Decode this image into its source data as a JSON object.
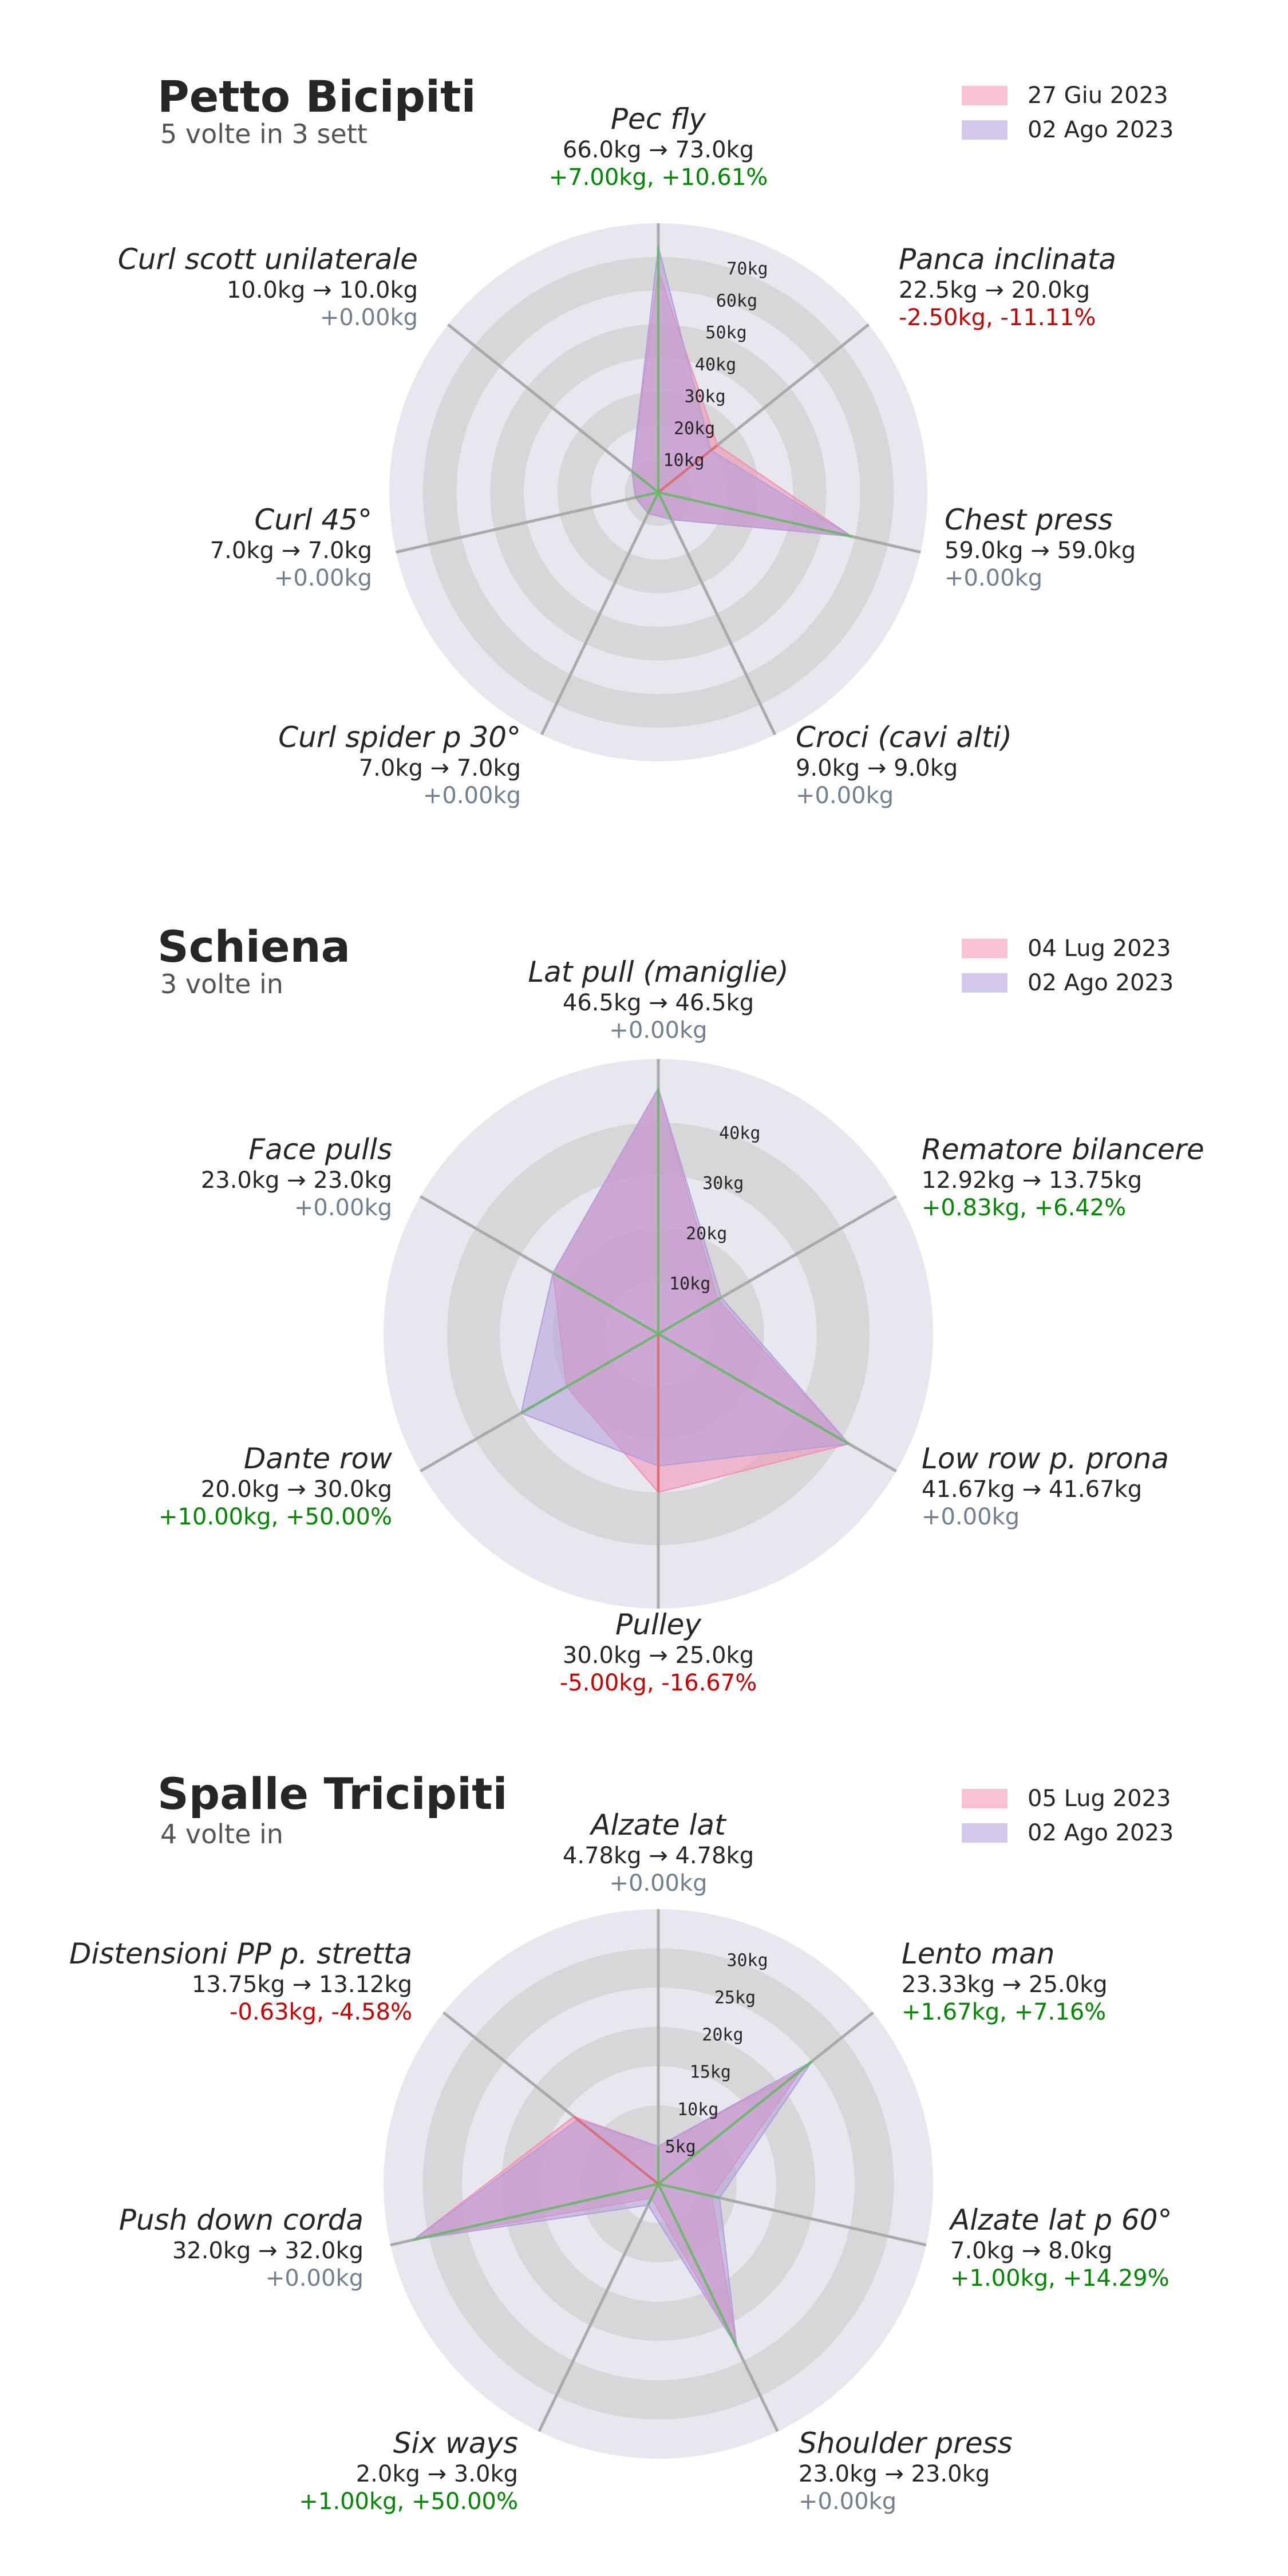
{
  "colors": {
    "before": "#f48fb1",
    "after": "#b39ddb",
    "positive": "#008800",
    "negative": "#cc0000",
    "neutral": "#708090",
    "ring_dark": "#d7d7da",
    "ring_light": "#e7e7ef",
    "spoke": "#aaaaaa"
  },
  "chart_data": [
    {
      "type": "radar",
      "title": "Petto Bicipiti",
      "subtitle": "5 volte in 3 sett",
      "legend": [
        "27 Giu 2023",
        "02 Ago 2023"
      ],
      "rmax": 80,
      "ticks": [
        10,
        20,
        30,
        40,
        50,
        60,
        70
      ],
      "tick_labels": [
        "10kg",
        "20kg",
        "30kg",
        "40kg",
        "50kg",
        "60kg",
        "70kg"
      ],
      "axes": [
        {
          "name": "Pec fly",
          "values_text": "66.0kg → 73.0kg",
          "delta_text": "+7.00kg, +10.61%",
          "sign": "positive"
        },
        {
          "name": "Panca inclinata",
          "values_text": "22.5kg → 20.0kg",
          "delta_text": "-2.50kg, -11.11%",
          "sign": "negative"
        },
        {
          "name": "Chest press",
          "values_text": "59.0kg → 59.0kg",
          "delta_text": "+0.00kg",
          "sign": "neutral"
        },
        {
          "name": "Croci (cavi alti)",
          "values_text": "9.0kg → 9.0kg",
          "delta_text": "+0.00kg",
          "sign": "neutral"
        },
        {
          "name": "Curl spider p 30°",
          "values_text": "7.0kg → 7.0kg",
          "delta_text": "+0.00kg",
          "sign": "neutral"
        },
        {
          "name": "Curl 45°",
          "values_text": "7.0kg → 7.0kg",
          "delta_text": "+0.00kg",
          "sign": "neutral"
        },
        {
          "name": "Curl scott unilaterale",
          "values_text": "10.0kg → 10.0kg",
          "delta_text": "+0.00kg",
          "sign": "neutral"
        }
      ],
      "series": [
        {
          "name": "27 Giu 2023",
          "values": [
            66.0,
            22.5,
            59.0,
            9.0,
            7.0,
            7.0,
            10.0
          ]
        },
        {
          "name": "02 Ago 2023",
          "values": [
            73.0,
            20.0,
            59.0,
            9.0,
            7.0,
            7.0,
            10.0
          ]
        }
      ]
    },
    {
      "type": "radar",
      "title": "Schiena",
      "subtitle": "3 volte in",
      "legend": [
        "04 Lug 2023",
        "02 Ago 2023"
      ],
      "rmax": 52,
      "ticks": [
        10,
        20,
        30,
        40
      ],
      "tick_labels": [
        "10kg",
        "20kg",
        "30kg",
        "40kg"
      ],
      "axes": [
        {
          "name": "Lat pull (maniglie)",
          "values_text": "46.5kg → 46.5kg",
          "delta_text": "+0.00kg",
          "sign": "neutral"
        },
        {
          "name": "Rematore bilancere",
          "values_text": "12.92kg → 13.75kg",
          "delta_text": "+0.83kg, +6.42%",
          "sign": "positive"
        },
        {
          "name": "Low row p. prona",
          "values_text": "41.67kg → 41.67kg",
          "delta_text": "+0.00kg",
          "sign": "neutral"
        },
        {
          "name": "Pulley",
          "values_text": "30.0kg → 25.0kg",
          "delta_text": "-5.00kg, -16.67%",
          "sign": "negative"
        },
        {
          "name": "Dante row",
          "values_text": "20.0kg → 30.0kg",
          "delta_text": "+10.00kg, +50.00%",
          "sign": "positive"
        },
        {
          "name": "Face pulls",
          "values_text": "23.0kg → 23.0kg",
          "delta_text": "+0.00kg",
          "sign": "neutral"
        }
      ],
      "series": [
        {
          "name": "04 Lug 2023",
          "values": [
            46.5,
            12.92,
            41.67,
            30.0,
            20.0,
            23.0
          ]
        },
        {
          "name": "02 Ago 2023",
          "values": [
            46.5,
            13.75,
            41.67,
            25.0,
            30.0,
            23.0
          ]
        }
      ]
    },
    {
      "type": "radar",
      "title": "Spalle Tricipiti",
      "subtitle": "4 volte in",
      "legend": [
        "05 Lug 2023",
        "02 Ago 2023"
      ],
      "rmax": 35,
      "ticks": [
        5,
        10,
        15,
        20,
        25,
        30
      ],
      "tick_labels": [
        "5kg",
        "10kg",
        "15kg",
        "20kg",
        "25kg",
        "30kg"
      ],
      "axes": [
        {
          "name": "Alzate lat",
          "values_text": "4.78kg → 4.78kg",
          "delta_text": "+0.00kg",
          "sign": "neutral"
        },
        {
          "name": "Lento man",
          "values_text": "23.33kg → 25.0kg",
          "delta_text": "+1.67kg, +7.16%",
          "sign": "positive"
        },
        {
          "name": "Alzate lat p 60°",
          "values_text": "7.0kg → 8.0kg",
          "delta_text": "+1.00kg, +14.29%",
          "sign": "positive"
        },
        {
          "name": "Shoulder press",
          "values_text": "23.0kg → 23.0kg",
          "delta_text": "+0.00kg",
          "sign": "neutral"
        },
        {
          "name": "Six ways",
          "values_text": "2.0kg → 3.0kg",
          "delta_text": "+1.00kg, +50.00%",
          "sign": "positive"
        },
        {
          "name": "Push down corda",
          "values_text": "32.0kg → 32.0kg",
          "delta_text": "+0.00kg",
          "sign": "neutral"
        },
        {
          "name": "Distensioni PP p. stretta",
          "values_text": "13.75kg → 13.12kg",
          "delta_text": "-0.63kg, -4.58%",
          "sign": "negative"
        }
      ],
      "series": [
        {
          "name": "05 Lug 2023",
          "values": [
            4.78,
            23.33,
            7.0,
            23.0,
            2.0,
            32.0,
            13.75
          ]
        },
        {
          "name": "02 Ago 2023",
          "values": [
            4.78,
            25.0,
            8.0,
            23.0,
            3.0,
            32.0,
            13.12
          ]
        }
      ]
    }
  ]
}
